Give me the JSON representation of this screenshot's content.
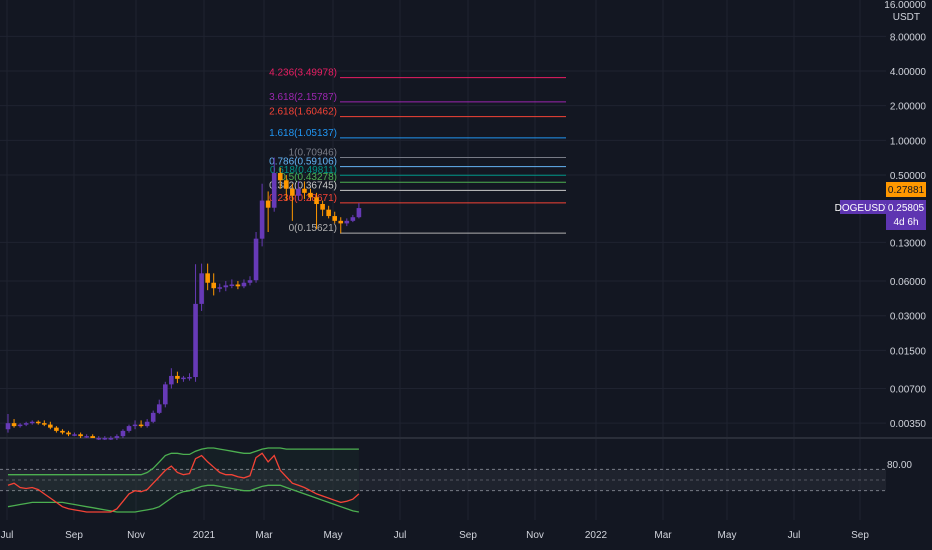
{
  "colors": {
    "background": "#131722",
    "grid": "#1f2330",
    "text": "#d1d4dc",
    "bull": "#673ab7",
    "bear": "#ff9800",
    "rsi_line": "#f44336",
    "upper_band": "#4caf50",
    "lower_band": "#4caf50",
    "band_fill": "#2a2e39",
    "last_price_bg": "#ff9800",
    "symbol_bg": "#5e35b1"
  },
  "price_axis": {
    "currency": "USDT",
    "top_label": "16.00000",
    "ticks": [
      "8.00000",
      "4.00000",
      "2.00000",
      "1.00000",
      "0.50000",
      "0.13000",
      "0.06000",
      "0.03000",
      "0.01500",
      "0.00700",
      "0.00350"
    ],
    "last_price": "0.27881",
    "symbol": "DOGEUSDT",
    "symbol_price": "0.25805",
    "countdown": "4d 6h"
  },
  "indicator_axis": {
    "tick": "80.00"
  },
  "time_axis": {
    "ticks": [
      "Jul",
      "Sep",
      "Nov",
      "2021",
      "Mar",
      "May",
      "Jul",
      "Sep",
      "Nov",
      "2022",
      "Mar",
      "May",
      "Jul",
      "Sep"
    ]
  },
  "chart_data": {
    "type": "candlestick",
    "scale": "log",
    "symbol": "DOGEUSDT",
    "fib_levels": [
      {
        "label": "4.236(3.49978)",
        "value": 3.49978,
        "color": "#e91e63"
      },
      {
        "label": "3.618(2.15787)",
        "value": 2.15787,
        "color": "#9c27b0"
      },
      {
        "label": "2.618(1.60462)",
        "value": 1.60462,
        "color": "#f44336"
      },
      {
        "label": "1.618(1.05137)",
        "value": 1.05137,
        "color": "#2196f3"
      },
      {
        "label": "1(0.70946)",
        "value": 0.70946,
        "color": "#787b86"
      },
      {
        "label": "0.786(0.59106)",
        "value": 0.59106,
        "color": "#64b5f6"
      },
      {
        "label": "0.618(0.49811)",
        "value": 0.49811,
        "color": "#009688"
      },
      {
        "label": "0.5(0.43278)",
        "value": 0.43278,
        "color": "#4caf50"
      },
      {
        "label": "0.382(0.36745)",
        "value": 0.36745,
        "color": "#c8c8c8"
      },
      {
        "label": "0.236(0.28671)",
        "value": 0.28671,
        "color": "#f44336"
      },
      {
        "label": "0(0.15621)",
        "value": 0.15621,
        "color": "#b0b0b0"
      }
    ],
    "candles": [
      {
        "t": "2020-06-28",
        "o": 0.0031,
        "h": 0.0042,
        "l": 0.0029,
        "c": 0.0035
      },
      {
        "t": "2020-07-05",
        "o": 0.0035,
        "h": 0.0038,
        "l": 0.0032,
        "c": 0.0033
      },
      {
        "t": "2020-07-12",
        "o": 0.0033,
        "h": 0.0035,
        "l": 0.0032,
        "c": 0.0034
      },
      {
        "t": "2020-07-19",
        "o": 0.0034,
        "h": 0.0036,
        "l": 0.0033,
        "c": 0.0035
      },
      {
        "t": "2020-07-26",
        "o": 0.0035,
        "h": 0.0037,
        "l": 0.0034,
        "c": 0.0036
      },
      {
        "t": "2020-08-02",
        "o": 0.0036,
        "h": 0.0037,
        "l": 0.0034,
        "c": 0.0035
      },
      {
        "t": "2020-08-09",
        "o": 0.0035,
        "h": 0.0037,
        "l": 0.0033,
        "c": 0.0034
      },
      {
        "t": "2020-08-16",
        "o": 0.0034,
        "h": 0.0036,
        "l": 0.0031,
        "c": 0.0032
      },
      {
        "t": "2020-08-23",
        "o": 0.0032,
        "h": 0.0033,
        "l": 0.0029,
        "c": 0.003
      },
      {
        "t": "2020-08-30",
        "o": 0.003,
        "h": 0.0031,
        "l": 0.0028,
        "c": 0.0029
      },
      {
        "t": "2020-09-06",
        "o": 0.0029,
        "h": 0.003,
        "l": 0.0027,
        "c": 0.0028
      },
      {
        "t": "2020-09-13",
        "o": 0.0028,
        "h": 0.0029,
        "l": 0.0027,
        "c": 0.0028
      },
      {
        "t": "2020-09-20",
        "o": 0.0028,
        "h": 0.0029,
        "l": 0.0026,
        "c": 0.0027
      },
      {
        "t": "2020-09-27",
        "o": 0.0027,
        "h": 0.0028,
        "l": 0.0026,
        "c": 0.0027
      },
      {
        "t": "2020-10-04",
        "o": 0.0027,
        "h": 0.0028,
        "l": 0.0026,
        "c": 0.0026
      },
      {
        "t": "2020-10-11",
        "o": 0.0026,
        "h": 0.0027,
        "l": 0.0025,
        "c": 0.0026
      },
      {
        "t": "2020-10-18",
        "o": 0.0026,
        "h": 0.0027,
        "l": 0.0025,
        "c": 0.0026
      },
      {
        "t": "2020-10-25",
        "o": 0.0026,
        "h": 0.0027,
        "l": 0.0025,
        "c": 0.0026
      },
      {
        "t": "2020-11-01",
        "o": 0.0026,
        "h": 0.0028,
        "l": 0.0025,
        "c": 0.0027
      },
      {
        "t": "2020-11-08",
        "o": 0.0027,
        "h": 0.0031,
        "l": 0.0026,
        "c": 0.003
      },
      {
        "t": "2020-11-15",
        "o": 0.003,
        "h": 0.0034,
        "l": 0.0029,
        "c": 0.0033
      },
      {
        "t": "2020-11-22",
        "o": 0.0033,
        "h": 0.0037,
        "l": 0.0031,
        "c": 0.0034
      },
      {
        "t": "2020-11-29",
        "o": 0.0034,
        "h": 0.0037,
        "l": 0.0032,
        "c": 0.0033
      },
      {
        "t": "2020-12-06",
        "o": 0.0033,
        "h": 0.0038,
        "l": 0.0032,
        "c": 0.0036
      },
      {
        "t": "2020-12-13",
        "o": 0.0036,
        "h": 0.0045,
        "l": 0.0035,
        "c": 0.0043
      },
      {
        "t": "2020-12-20",
        "o": 0.0043,
        "h": 0.0056,
        "l": 0.0042,
        "c": 0.0051
      },
      {
        "t": "2020-12-27",
        "o": 0.0051,
        "h": 0.008,
        "l": 0.0048,
        "c": 0.0076
      },
      {
        "t": "2021-01-03",
        "o": 0.0076,
        "h": 0.0105,
        "l": 0.007,
        "c": 0.009
      },
      {
        "t": "2021-01-10",
        "o": 0.009,
        "h": 0.0098,
        "l": 0.0078,
        "c": 0.0085
      },
      {
        "t": "2021-01-17",
        "o": 0.0085,
        "h": 0.009,
        "l": 0.008,
        "c": 0.0087
      },
      {
        "t": "2021-01-24",
        "o": 0.0087,
        "h": 0.0095,
        "l": 0.0082,
        "c": 0.0088
      },
      {
        "t": "2021-01-31",
        "o": 0.0088,
        "h": 0.084,
        "l": 0.008,
        "c": 0.038
      },
      {
        "t": "2021-02-07",
        "o": 0.038,
        "h": 0.085,
        "l": 0.033,
        "c": 0.07
      },
      {
        "t": "2021-02-14",
        "o": 0.07,
        "h": 0.085,
        "l": 0.05,
        "c": 0.058
      },
      {
        "t": "2021-02-21",
        "o": 0.058,
        "h": 0.07,
        "l": 0.045,
        "c": 0.052
      },
      {
        "t": "2021-02-28",
        "o": 0.052,
        "h": 0.057,
        "l": 0.048,
        "c": 0.053
      },
      {
        "t": "2021-03-07",
        "o": 0.053,
        "h": 0.06,
        "l": 0.049,
        "c": 0.055
      },
      {
        "t": "2021-03-14",
        "o": 0.055,
        "h": 0.062,
        "l": 0.052,
        "c": 0.056
      },
      {
        "t": "2021-03-21",
        "o": 0.056,
        "h": 0.06,
        "l": 0.051,
        "c": 0.054
      },
      {
        "t": "2021-03-28",
        "o": 0.054,
        "h": 0.062,
        "l": 0.052,
        "c": 0.058
      },
      {
        "t": "2021-04-04",
        "o": 0.058,
        "h": 0.066,
        "l": 0.055,
        "c": 0.061
      },
      {
        "t": "2021-04-11",
        "o": 0.061,
        "h": 0.16,
        "l": 0.058,
        "c": 0.14
      },
      {
        "t": "2021-04-18",
        "o": 0.14,
        "h": 0.42,
        "l": 0.12,
        "c": 0.3
      },
      {
        "t": "2021-04-25",
        "o": 0.3,
        "h": 0.36,
        "l": 0.16,
        "c": 0.26
      },
      {
        "t": "2021-05-02",
        "o": 0.26,
        "h": 0.709,
        "l": 0.24,
        "c": 0.52
      },
      {
        "t": "2021-05-09",
        "o": 0.52,
        "h": 0.58,
        "l": 0.38,
        "c": 0.45
      },
      {
        "t": "2021-05-16",
        "o": 0.45,
        "h": 0.5,
        "l": 0.3,
        "c": 0.38
      },
      {
        "t": "2021-05-23",
        "o": 0.38,
        "h": 0.42,
        "l": 0.2,
        "c": 0.33
      },
      {
        "t": "2021-05-30",
        "o": 0.33,
        "h": 0.44,
        "l": 0.3,
        "c": 0.38
      },
      {
        "t": "2021-06-06",
        "o": 0.38,
        "h": 0.44,
        "l": 0.31,
        "c": 0.35
      },
      {
        "t": "2021-06-13",
        "o": 0.35,
        "h": 0.38,
        "l": 0.3,
        "c": 0.32
      },
      {
        "t": "2021-06-20",
        "o": 0.32,
        "h": 0.35,
        "l": 0.17,
        "c": 0.28
      },
      {
        "t": "2021-06-27",
        "o": 0.28,
        "h": 0.3,
        "l": 0.22,
        "c": 0.25
      },
      {
        "t": "2021-07-04",
        "o": 0.25,
        "h": 0.27,
        "l": 0.21,
        "c": 0.22
      },
      {
        "t": "2021-07-11",
        "o": 0.22,
        "h": 0.24,
        "l": 0.19,
        "c": 0.2
      },
      {
        "t": "2021-07-18",
        "o": 0.2,
        "h": 0.215,
        "l": 0.156,
        "c": 0.19
      },
      {
        "t": "2021-07-25",
        "o": 0.19,
        "h": 0.21,
        "l": 0.18,
        "c": 0.2
      },
      {
        "t": "2021-08-01",
        "o": 0.2,
        "h": 0.225,
        "l": 0.195,
        "c": 0.215
      },
      {
        "t": "2021-08-08",
        "o": 0.215,
        "h": 0.285,
        "l": 0.21,
        "c": 0.258
      }
    ],
    "indicator": {
      "name": "RSI with bands",
      "rsi": [
        60,
        62,
        58,
        57,
        58,
        56,
        52,
        48,
        44,
        40,
        38,
        37,
        36,
        35,
        35,
        35,
        35,
        35,
        38,
        45,
        52,
        55,
        54,
        56,
        62,
        68,
        74,
        78,
        72,
        70,
        71,
        85,
        88,
        82,
        77,
        72,
        70,
        70,
        68,
        67,
        69,
        86,
        90,
        82,
        88,
        74,
        68,
        62,
        60,
        58,
        55,
        52,
        50,
        48,
        46,
        44,
        45,
        47,
        52
      ],
      "upper": [
        70,
        70,
        70,
        70,
        70,
        70,
        70,
        70,
        70,
        70,
        70,
        70,
        70,
        70,
        70,
        70,
        70,
        70,
        70,
        70,
        70,
        70,
        70,
        72,
        76,
        82,
        88,
        90,
        90,
        89,
        89,
        92,
        94,
        95,
        95,
        94,
        93,
        92,
        91,
        90,
        90,
        92,
        94,
        95,
        95,
        95,
        94,
        94,
        94,
        94,
        94,
        94,
        94,
        94,
        94,
        94,
        94,
        94,
        94
      ],
      "lower": [
        40,
        41,
        42,
        43,
        44,
        44,
        44,
        44,
        44,
        44,
        43,
        42,
        41,
        40,
        39,
        38,
        37,
        36,
        35,
        35,
        35,
        35,
        36,
        37,
        38,
        40,
        44,
        48,
        52,
        54,
        55,
        57,
        59,
        60,
        60,
        59,
        58,
        57,
        56,
        55,
        55,
        57,
        59,
        60,
        60,
        60,
        58,
        56,
        54,
        52,
        50,
        48,
        46,
        44,
        42,
        40,
        38,
        36,
        35
      ],
      "guide_lines": [
        75,
        55
      ]
    }
  }
}
